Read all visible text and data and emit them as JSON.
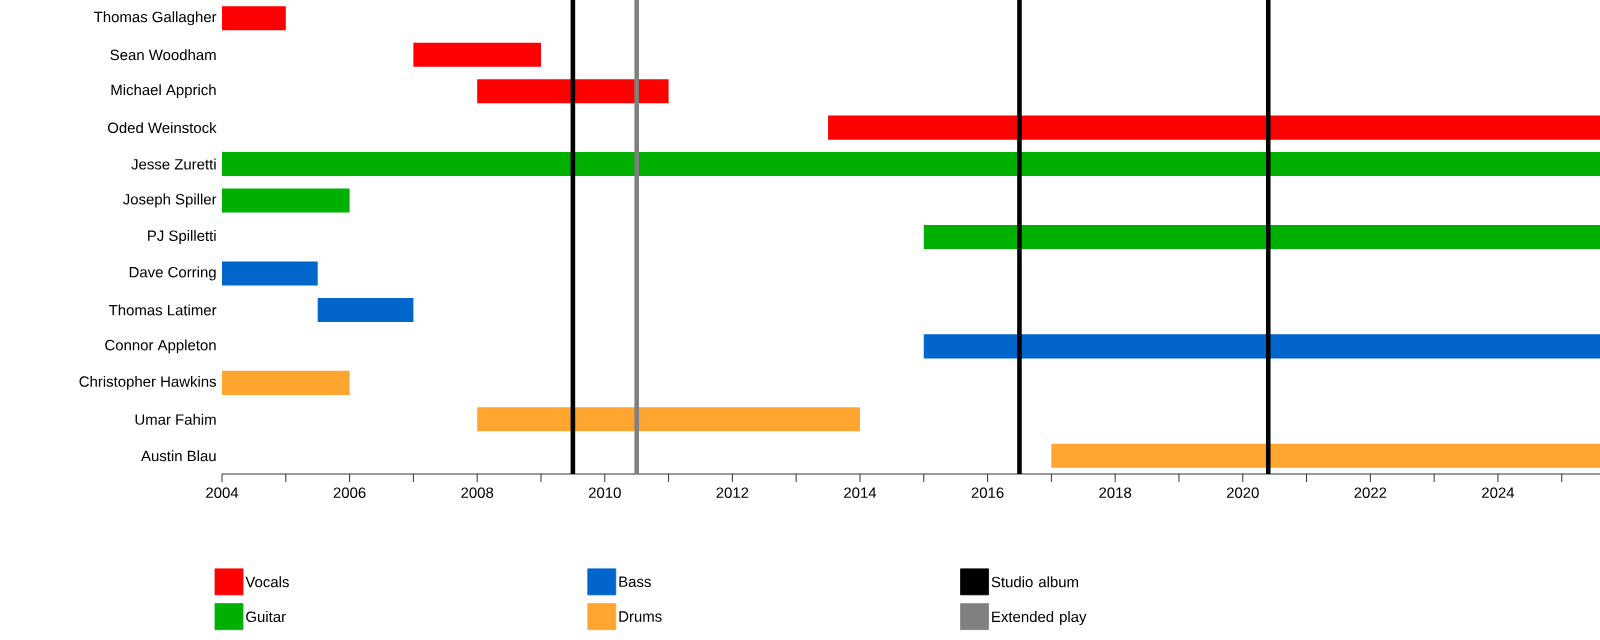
{
  "chart_data": {
    "type": "bar",
    "orientation": "horizontal",
    "legend": "bottom",
    "categories": [
      "Thomas Gallagher",
      "Sean Woodham",
      "Michael Apprich",
      "Oded Weinstock",
      "Jesse Zuretti",
      "Joseph Spiller",
      "PJ Spilletti",
      "Dave Corring",
      "Thomas Latimer",
      "Connor Appleton",
      "Christopher Hawkins",
      "Umar Fahim",
      "Austin Blau"
    ],
    "series": [
      {
        "name": "Vocals",
        "color": "#ff0000",
        "values": [
          1,
          2,
          3,
          12.1,
          null,
          null,
          null,
          null,
          null,
          null,
          null,
          null,
          null
        ],
        "base": [
          2004,
          2007,
          2008,
          2013.5,
          null,
          null,
          null,
          null,
          null,
          null,
          null,
          null,
          null
        ]
      },
      {
        "name": "Guitar",
        "color": "#00b000",
        "values": [
          null,
          null,
          null,
          null,
          21.6,
          2,
          10.6,
          null,
          null,
          null,
          null,
          null,
          null
        ],
        "base": [
          null,
          null,
          null,
          null,
          2004,
          2004,
          2015,
          null,
          null,
          null,
          null,
          null,
          null
        ]
      },
      {
        "name": "Bass",
        "color": "#0066cc",
        "values": [
          null,
          null,
          null,
          null,
          null,
          null,
          null,
          1.5,
          1.5,
          10.6,
          null,
          null,
          null
        ],
        "base": [
          null,
          null,
          null,
          null,
          null,
          null,
          null,
          2004,
          2005.5,
          2015,
          null,
          null,
          null
        ]
      },
      {
        "name": "Drums",
        "color": "#ffa530",
        "values": [
          null,
          null,
          null,
          null,
          null,
          null,
          null,
          null,
          null,
          null,
          2,
          6,
          8.6
        ],
        "base": [
          null,
          null,
          null,
          null,
          null,
          null,
          null,
          null,
          null,
          null,
          2004,
          2008,
          2017
        ]
      }
    ],
    "xlim": [
      2004,
      2025.6
    ],
    "xticks": [
      2004,
      {
        "value": 2005,
        "label": null
      },
      2006,
      {
        "value": 2007,
        "label": null
      },
      2008,
      {
        "value": 2009,
        "label": null
      },
      2010,
      {
        "value": 2011,
        "label": null
      },
      2012,
      {
        "value": 2013,
        "label": null
      },
      2014,
      {
        "value": 2015,
        "label": null
      },
      2016,
      {
        "value": 2017,
        "label": null
      },
      2018,
      {
        "value": 2019,
        "label": null
      },
      2020,
      {
        "value": 2021,
        "label": null
      },
      2022,
      {
        "value": 2023,
        "label": null
      },
      2024,
      {
        "value": 2025,
        "label": null
      }
    ],
    "ref_lines": [
      {
        "axis": "x",
        "value": 2009.5,
        "label": "Studio album",
        "color": "#000000"
      },
      {
        "axis": "x",
        "value": 2010.5,
        "label": "Extended play",
        "color": "#808080"
      },
      {
        "axis": "x",
        "value": 2016.5,
        "color": "#000000"
      },
      {
        "axis": "x",
        "value": 2020.4,
        "color": "#000000"
      }
    ]
  }
}
